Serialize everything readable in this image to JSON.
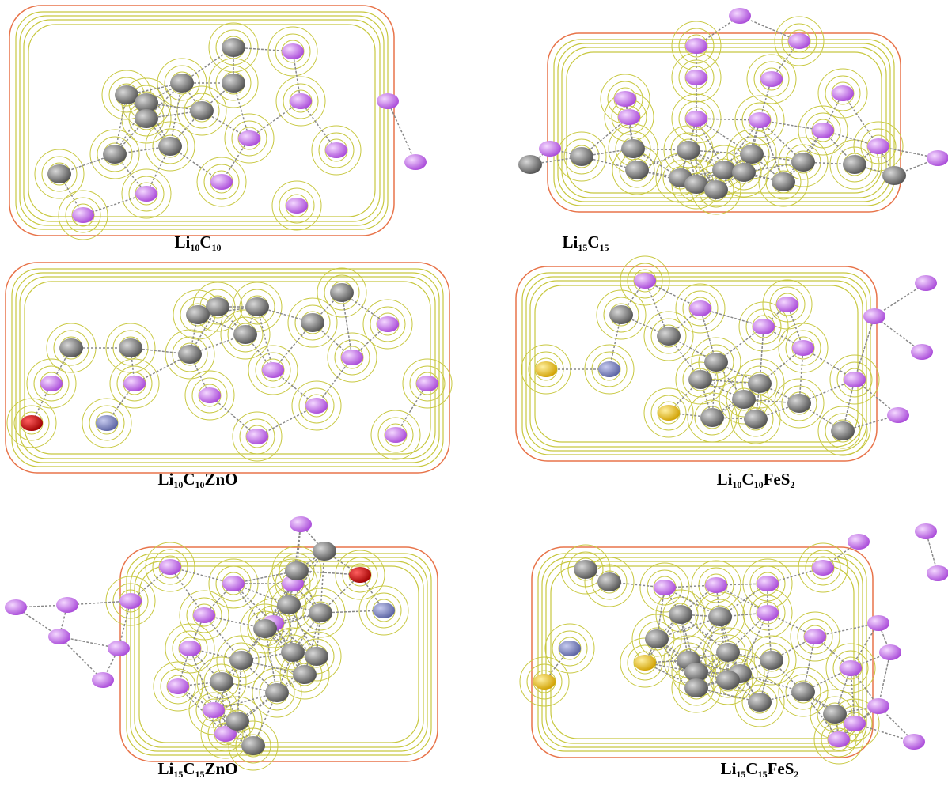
{
  "figure": {
    "panels": [
      {
        "caption": [
          "Li",
          "10",
          "C",
          "10"
        ]
      },
      {
        "caption": [
          "Li",
          "15",
          "C",
          "15"
        ]
      },
      {
        "caption": [
          "Li",
          "10",
          "C",
          "10",
          "ZnO"
        ]
      },
      {
        "caption": [
          "Li",
          "10",
          "C",
          "10",
          "FeS",
          "2"
        ]
      },
      {
        "caption": [
          "Li",
          "15",
          "C",
          "15",
          "ZnO"
        ]
      },
      {
        "caption": [
          "Li",
          "15",
          "C",
          "15",
          "FeS",
          "2"
        ]
      }
    ]
  }
}
